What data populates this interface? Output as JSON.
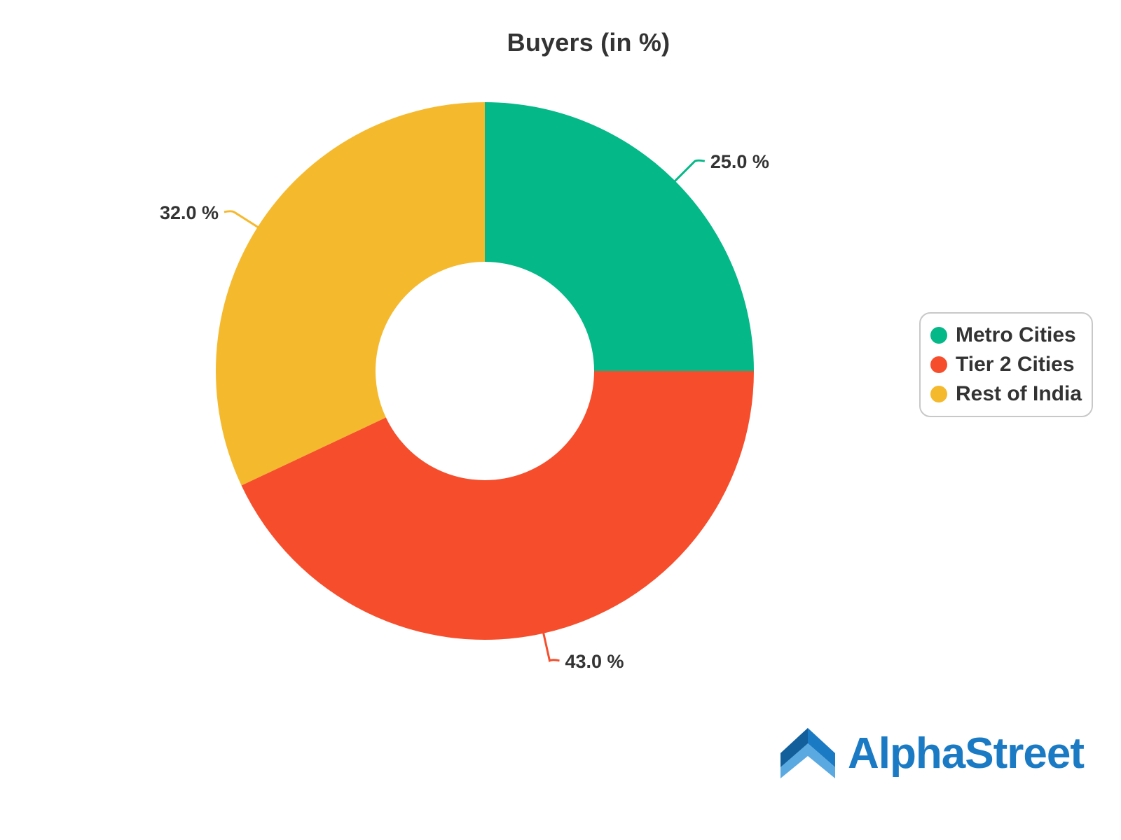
{
  "chart_data": {
    "type": "pie",
    "donut": true,
    "title": "Buyers (in %)",
    "categories": [
      "Metro Cities",
      "Tier 2 Cities",
      "Rest of India"
    ],
    "values": [
      25.0,
      43.0,
      32.0
    ],
    "value_labels": [
      "25.0 %",
      "43.0 %",
      "32.0 %"
    ],
    "colors": [
      "#04b887",
      "#f64e2c",
      "#f5b92d"
    ],
    "legend_position": "right"
  },
  "legend": {
    "items": [
      {
        "label": "Metro Cities",
        "color": "#04b887"
      },
      {
        "label": "Tier 2 Cities",
        "color": "#f64e2c"
      },
      {
        "label": "Rest of India",
        "color": "#f5b92d"
      }
    ]
  },
  "brand": {
    "name": "AlphaStreet",
    "color": "#1a7bc4",
    "icon": "alphastreet-logo-icon"
  }
}
